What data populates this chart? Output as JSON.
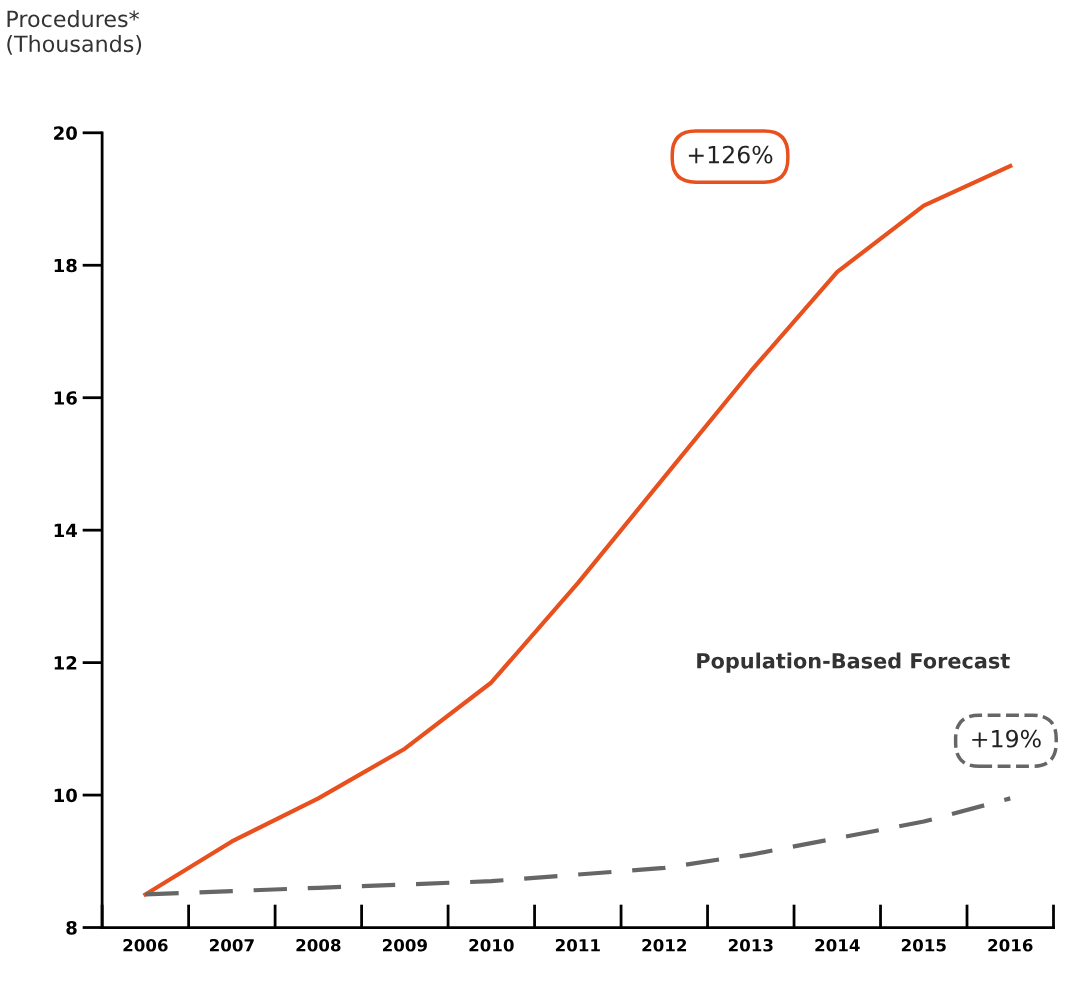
{
  "chart_data": {
    "type": "line",
    "ylabel": "Procedures*\n(Thousands)",
    "categories": [
      "2006",
      "2007",
      "2008",
      "2009",
      "2010",
      "2011",
      "2012",
      "2013",
      "2014",
      "2015",
      "2016"
    ],
    "series": [
      {
        "color": "#e8501e",
        "line_style": "solid",
        "values": [
          8.5,
          9.3,
          9.95,
          10.7,
          11.7,
          13.2,
          14.8,
          16.4,
          17.9,
          18.9,
          19.5
        ]
      },
      {
        "name": "Population-Based Forecast",
        "color": "#666666",
        "line_style": "dashed",
        "values": [
          8.5,
          8.55,
          8.6,
          8.65,
          8.7,
          8.8,
          8.9,
          9.1,
          9.35,
          9.6,
          9.95
        ]
      }
    ],
    "annotations": [
      "+126%",
      "+19%"
    ],
    "ylim": [
      8,
      20
    ],
    "yticks": [
      8,
      10,
      12,
      14,
      16,
      18,
      20
    ],
    "grid": false,
    "legend": false,
    "marker": "none"
  }
}
